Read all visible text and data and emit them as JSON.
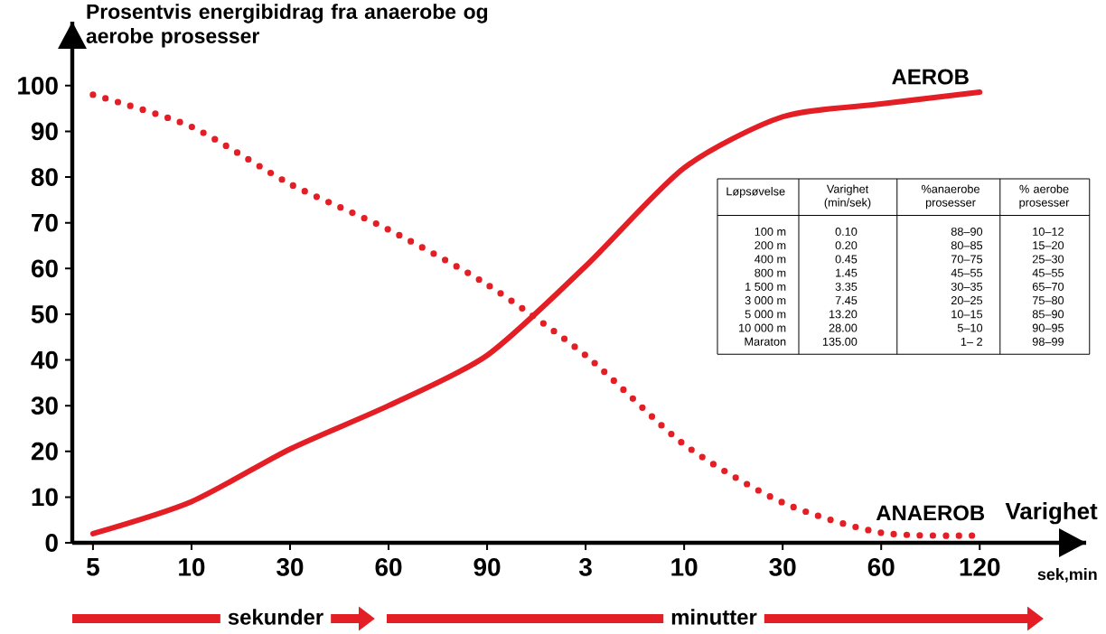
{
  "chart_data": {
    "type": "line",
    "ylabel": "Prosentvis energibidrag fra anaerobe og aerobe prosesser",
    "xlabel": "Varighet",
    "categories": [
      "5",
      "10",
      "30",
      "60",
      "90",
      "3",
      "10",
      "30",
      "60",
      "120"
    ],
    "ylim": [
      0,
      114
    ],
    "yticks": [
      0,
      10,
      20,
      30,
      40,
      50,
      60,
      70,
      80,
      90,
      100
    ],
    "series": [
      {
        "name": "AEROB",
        "color": "#e31e24",
        "line_style": "solid",
        "values": [
          2,
          9,
          20.5,
          30,
          41,
          60.5,
          82,
          93.2,
          96,
          98.6
        ]
      },
      {
        "name": "ANAEROB",
        "color": "#e31e24",
        "line_style": "dotted",
        "values": [
          98,
          91,
          78.5,
          68.5,
          56.5,
          41,
          21.5,
          8.8,
          2.2,
          1.6
        ]
      }
    ],
    "annotations": [
      "sek,min",
      "sekunder",
      "minutter",
      "Løpsøvelse",
      "Varighet (min/sek)",
      "%anaerobe prosesser",
      "% aerobe prosesser",
      "100 m",
      "0.10",
      "88–90",
      "10–12",
      "200 m",
      "0.20",
      "80–85",
      "15–20",
      "400 m",
      "0.45",
      "70–75",
      "25–30",
      "800 m",
      "1.45",
      "45–55",
      "45–55",
      "1 500 m",
      "3.35",
      "30–35",
      "65–70",
      "3 000 m",
      "7.45",
      "20–25",
      "75–80",
      "5 000 m",
      "13.20",
      "10–15",
      "85–90",
      "10 000 m",
      "28.00",
      "5–10",
      "90–95",
      "Maraton",
      "135.00",
      "1– 2",
      "98–99"
    ]
  }
}
